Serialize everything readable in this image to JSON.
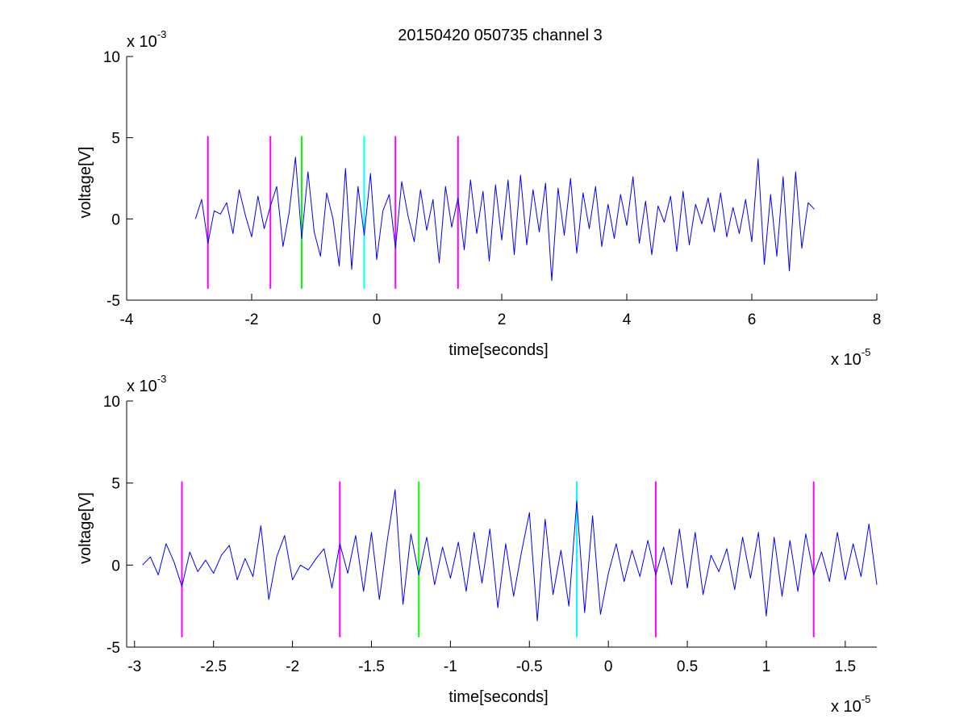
{
  "figure": {
    "title": "20150420 050735 channel 3"
  },
  "chart_data": [
    {
      "type": "line",
      "title": "20150420 050735 channel 3",
      "xlabel": "time[seconds]",
      "ylabel": "voltage[V]",
      "x_exponent_label": "x 10",
      "x_exponent": "-5",
      "y_exponent_label": "x 10",
      "y_exponent": "-3",
      "xlim": [
        -4,
        8
      ],
      "ylim": [
        -5,
        10
      ],
      "xticks": [
        -4,
        -2,
        0,
        2,
        4,
        6,
        8
      ],
      "xtick_labels": [
        "-4",
        "-2",
        "0",
        "2",
        "4",
        "6",
        "8"
      ],
      "yticks": [
        -5,
        0,
        5,
        10
      ],
      "ytick_labels": [
        "-5",
        "0",
        "5",
        "10"
      ],
      "grid": false,
      "series": [
        {
          "color": "#0000ff",
          "x": [
            -2.9,
            -2.8,
            -2.7,
            -2.6,
            -2.5,
            -2.4,
            -2.3,
            -2.2,
            -2.1,
            -2.0,
            -1.9,
            -1.8,
            -1.7,
            -1.6,
            -1.5,
            -1.4,
            -1.3,
            -1.2,
            -1.1,
            -1.0,
            -0.9,
            -0.8,
            -0.7,
            -0.6,
            -0.5,
            -0.4,
            -0.3,
            -0.2,
            -0.1,
            0.0,
            0.1,
            0.2,
            0.3,
            0.4,
            0.5,
            0.6,
            0.7,
            0.8,
            0.9,
            1.0,
            1.1,
            1.2,
            1.3,
            1.4,
            1.5,
            1.6,
            1.7,
            1.8,
            1.9,
            2.0,
            2.1,
            2.2,
            2.3,
            2.4,
            2.5,
            2.6,
            2.7,
            2.8,
            2.9,
            3.0,
            3.1,
            3.2,
            3.3,
            3.4,
            3.5,
            3.6,
            3.7,
            3.8,
            3.9,
            4.0,
            4.1,
            4.2,
            4.3,
            4.4,
            4.5,
            4.6,
            4.7,
            4.8,
            4.9,
            5.0,
            5.1,
            5.2,
            5.3,
            5.4,
            5.5,
            5.6,
            5.7,
            5.8,
            5.9,
            6.0,
            6.1,
            6.2,
            6.3,
            6.4,
            6.5,
            6.6,
            6.7,
            6.8,
            6.9,
            7.0
          ],
          "y": [
            0.0,
            1.2,
            -1.5,
            0.5,
            0.3,
            1.0,
            -0.9,
            1.8,
            0.2,
            -1.1,
            1.4,
            -0.6,
            0.8,
            2.0,
            -1.7,
            0.4,
            3.8,
            -1.2,
            2.9,
            -0.8,
            -2.3,
            1.6,
            0.0,
            -2.9,
            3.1,
            -3.1,
            2.0,
            -1.0,
            2.8,
            -2.5,
            0.5,
            1.5,
            -1.8,
            2.3,
            0.2,
            -1.4,
            1.8,
            -0.7,
            1.2,
            -2.7,
            2.0,
            -0.5,
            1.3,
            -1.9,
            2.4,
            -0.9,
            1.7,
            -2.6,
            2.1,
            -1.3,
            2.4,
            -2.2,
            2.7,
            -1.6,
            1.8,
            -0.8,
            2.2,
            -3.8,
            1.9,
            -1.0,
            2.5,
            -2.1,
            1.6,
            -0.6,
            2.0,
            -1.7,
            0.9,
            -1.2,
            1.5,
            -0.4,
            2.6,
            -1.5,
            1.1,
            -2.2,
            0.8,
            -0.2,
            1.4,
            -2.0,
            1.7,
            -1.6,
            0.9,
            -0.3,
            1.3,
            -0.8,
            1.6,
            -1.1,
            0.7,
            -0.9,
            1.2,
            -1.4,
            3.7,
            -2.8,
            1.5,
            -2.3,
            2.6,
            -3.2,
            2.9,
            -1.8,
            1.0,
            0.6
          ]
        }
      ],
      "markers": [
        {
          "x": -2.7,
          "color": "#ff00ff"
        },
        {
          "x": -1.7,
          "color": "#ff00ff"
        },
        {
          "x": -1.2,
          "color": "#00ff00"
        },
        {
          "x": -0.2,
          "color": "#00ffff"
        },
        {
          "x": 0.3,
          "color": "#ff00ff"
        },
        {
          "x": 1.3,
          "color": "#ff00ff"
        }
      ],
      "marker_yrange": [
        -4.3,
        5.1
      ]
    },
    {
      "type": "line",
      "xlabel": "time[seconds]",
      "ylabel": "voltage[V]",
      "x_exponent_label": "x 10",
      "x_exponent": "-5",
      "y_exponent_label": "x 10",
      "y_exponent": "-3",
      "xlim": [
        -3.05,
        1.7
      ],
      "ylim": [
        -5,
        10
      ],
      "xticks": [
        -3,
        -2.5,
        -2,
        -1.5,
        -1,
        -0.5,
        0,
        0.5,
        1,
        1.5
      ],
      "xtick_labels": [
        "-3",
        "-2.5",
        "-2",
        "-1.5",
        "-1",
        "-0.5",
        "0",
        "0.5",
        "1",
        "1.5"
      ],
      "yticks": [
        -5,
        0,
        5,
        10
      ],
      "ytick_labels": [
        "-5",
        "0",
        "5",
        "10"
      ],
      "grid": false,
      "series": [
        {
          "color": "#0000ff",
          "x": [
            -2.95,
            -2.9,
            -2.85,
            -2.8,
            -2.75,
            -2.7,
            -2.65,
            -2.6,
            -2.55,
            -2.5,
            -2.45,
            -2.4,
            -2.35,
            -2.3,
            -2.25,
            -2.2,
            -2.15,
            -2.1,
            -2.05,
            -2.0,
            -1.95,
            -1.9,
            -1.85,
            -1.8,
            -1.75,
            -1.7,
            -1.65,
            -1.6,
            -1.55,
            -1.5,
            -1.45,
            -1.4,
            -1.35,
            -1.3,
            -1.25,
            -1.2,
            -1.15,
            -1.1,
            -1.05,
            -1.0,
            -0.95,
            -0.9,
            -0.85,
            -0.8,
            -0.75,
            -0.7,
            -0.65,
            -0.6,
            -0.55,
            -0.5,
            -0.45,
            -0.4,
            -0.35,
            -0.3,
            -0.25,
            -0.2,
            -0.15,
            -0.1,
            -0.05,
            0.0,
            0.05,
            0.1,
            0.15,
            0.2,
            0.25,
            0.3,
            0.35,
            0.4,
            0.45,
            0.5,
            0.55,
            0.6,
            0.65,
            0.7,
            0.75,
            0.8,
            0.85,
            0.9,
            0.95,
            1.0,
            1.05,
            1.1,
            1.15,
            1.2,
            1.25,
            1.3,
            1.35,
            1.4,
            1.45,
            1.5,
            1.55,
            1.6,
            1.65,
            1.7
          ],
          "y": [
            0.0,
            0.5,
            -0.6,
            1.3,
            0.2,
            -1.3,
            0.8,
            -0.4,
            0.3,
            -0.5,
            0.6,
            1.2,
            -0.9,
            0.4,
            -0.7,
            2.4,
            -2.1,
            0.5,
            1.8,
            -0.9,
            0.0,
            -0.3,
            0.4,
            1.0,
            -1.4,
            1.3,
            -0.5,
            1.8,
            -1.6,
            2.0,
            -2.1,
            1.5,
            4.6,
            -2.4,
            1.9,
            -0.6,
            1.7,
            -1.2,
            1.1,
            -0.8,
            1.4,
            -1.6,
            2.0,
            -1.1,
            2.2,
            -2.6,
            1.3,
            -1.9,
            0.8,
            3.2,
            -3.4,
            2.8,
            -1.8,
            0.9,
            -2.5,
            3.9,
            -2.9,
            3.0,
            -3.0,
            -0.5,
            1.3,
            -1.0,
            0.9,
            -0.7,
            1.5,
            -0.6,
            1.1,
            -1.2,
            2.2,
            -1.4,
            2.0,
            -1.8,
            0.6,
            -0.4,
            1.0,
            -1.5,
            1.7,
            -0.8,
            2.0,
            -3.1,
            1.7,
            -1.9,
            1.5,
            -1.6,
            1.9,
            -0.6,
            0.8,
            -1.0,
            2.0,
            -0.9,
            1.3,
            -0.7,
            2.5,
            -1.2
          ]
        }
      ],
      "markers": [
        {
          "x": -2.7,
          "color": "#ff00ff"
        },
        {
          "x": -1.7,
          "color": "#ff00ff"
        },
        {
          "x": -1.2,
          "color": "#00ff00"
        },
        {
          "x": -0.2,
          "color": "#00ffff"
        },
        {
          "x": 0.3,
          "color": "#ff00ff"
        },
        {
          "x": 1.3,
          "color": "#ff00ff"
        }
      ],
      "marker_yrange": [
        -4.4,
        5.1
      ]
    }
  ]
}
